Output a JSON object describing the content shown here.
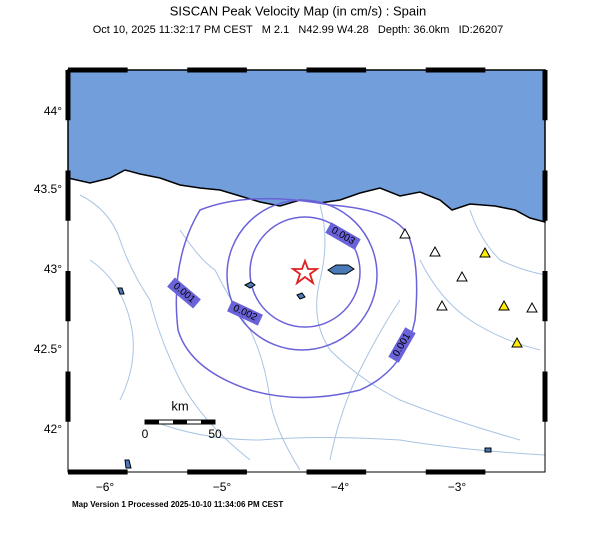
{
  "title": "SISCAN Peak Velocity Map (in cm/s) : Spain",
  "subtitle": "Oct 10, 2025 11:32:17 PM CEST   M 2.1   N42.99 W4.28   Depth: 36.0km   ID:26207",
  "lat_labels": [
    "44°",
    "43.5°",
    "43°",
    "42.5°",
    "42°"
  ],
  "lon_labels": [
    "−6°",
    "−5°",
    "−4°",
    "−3°"
  ],
  "contour_labels": [
    "0.003",
    "0.002",
    "0.001",
    "0.001"
  ],
  "scale": {
    "unit": "km",
    "start": "0",
    "end": "50"
  },
  "footer": "Map Version 1 Processed 2025-10-10 11:34:06 PM CEST"
}
